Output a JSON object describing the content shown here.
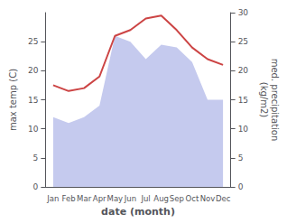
{
  "chart_data": {
    "type": "line",
    "xlabel": "date (month)",
    "ylabel": "max temp (C)",
    "y2label": "med. precipitation\n(kg/m2)",
    "categories": [
      "Jan",
      "Feb",
      "Mar",
      "Apr",
      "May",
      "Jun",
      "Jul",
      "Aug",
      "Sep",
      "Oct",
      "Nov",
      "Dec"
    ],
    "series": [
      {
        "type": "area",
        "axis": "y2",
        "color": "#c5caee",
        "values": [
          12.0,
          11.0,
          12.0,
          14.0,
          26.0,
          25.0,
          22.0,
          24.5,
          24.0,
          21.5,
          15.0,
          15.0
        ]
      },
      {
        "type": "line",
        "color": "#cc4444",
        "values": [
          17.5,
          16.5,
          17.0,
          19.0,
          26.0,
          27.0,
          29.0,
          29.5,
          27.0,
          24.0,
          22.0,
          21.0
        ]
      }
    ],
    "ylim": [
      0,
      30
    ],
    "yticks": [
      0,
      5,
      10,
      15,
      20,
      25
    ],
    "y2lim": [
      0,
      30
    ],
    "y2ticks": [
      0,
      5,
      10,
      15,
      20,
      25,
      30
    ],
    "grid": false
  }
}
